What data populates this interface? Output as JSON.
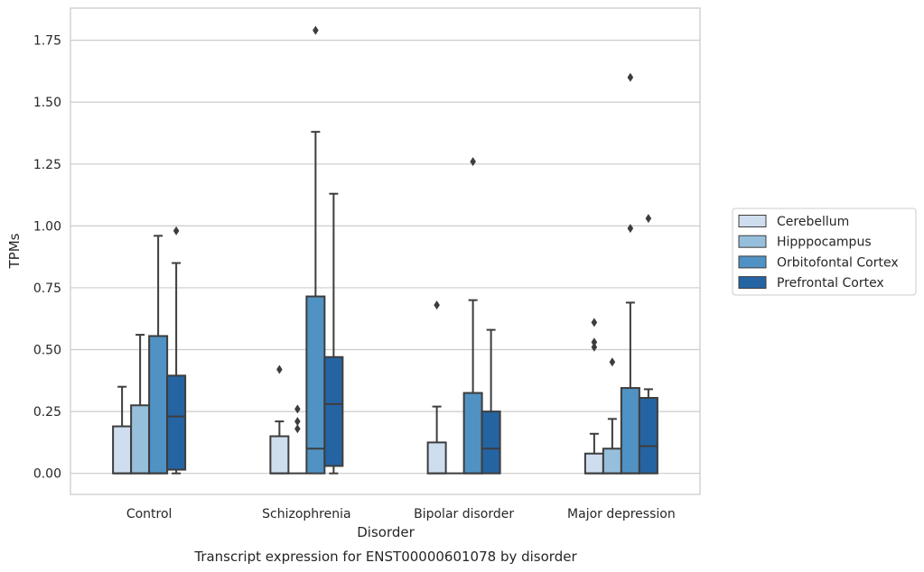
{
  "chart_data": {
    "type": "box",
    "caption": "Transcript expression for ENST00000601078 by disorder",
    "xlabel": "Disorder",
    "ylabel": "TPMs",
    "ylim": [
      -0.085,
      1.88
    ],
    "yticks": [
      0.0,
      0.25,
      0.5,
      0.75,
      1.0,
      1.25,
      1.5,
      1.75
    ],
    "ytick_labels": [
      "0.00",
      "0.25",
      "0.50",
      "0.75",
      "1.00",
      "1.25",
      "1.50",
      "1.75"
    ],
    "grid": "horizontal",
    "legend_position": "right",
    "categories": [
      "Control",
      "Schizophrenia",
      "Bipolar disorder",
      "Major depression"
    ],
    "series": [
      {
        "name": "Cerebellum",
        "color": "#cfdeee",
        "boxes": [
          {
            "whislo": 0.0,
            "q1": 0.0,
            "med": 0.0,
            "q3": 0.19,
            "whishi": 0.35,
            "fliers": []
          },
          {
            "whislo": 0.0,
            "q1": 0.0,
            "med": 0.0,
            "q3": 0.15,
            "whishi": 0.21,
            "fliers": [
              0.42
            ]
          },
          {
            "whislo": 0.0,
            "q1": 0.0,
            "med": 0.0,
            "q3": 0.125,
            "whishi": 0.27,
            "fliers": [
              0.68
            ]
          },
          {
            "whislo": 0.0,
            "q1": 0.0,
            "med": 0.0,
            "q3": 0.08,
            "whishi": 0.16,
            "fliers": [
              0.51,
              0.53,
              0.61
            ]
          }
        ]
      },
      {
        "name": "Hipppocampus",
        "color": "#96bfdc",
        "boxes": [
          {
            "whislo": 0.0,
            "q1": 0.0,
            "med": 0.0,
            "q3": 0.275,
            "whishi": 0.56,
            "fliers": []
          },
          {
            "whislo": 0.0,
            "q1": 0.0,
            "med": 0.0,
            "q3": 0.0,
            "whishi": 0.0,
            "fliers": [
              0.18,
              0.21,
              0.26
            ]
          },
          {
            "whislo": 0.0,
            "q1": 0.0,
            "med": 0.0,
            "q3": 0.0,
            "whishi": 0.0,
            "fliers": []
          },
          {
            "whislo": 0.0,
            "q1": 0.0,
            "med": 0.0,
            "q3": 0.1,
            "whishi": 0.22,
            "fliers": [
              0.45
            ]
          }
        ]
      },
      {
        "name": "Orbitofontal Cortex",
        "color": "#5092c3",
        "boxes": [
          {
            "whislo": 0.0,
            "q1": 0.0,
            "med": 0.0,
            "q3": 0.555,
            "whishi": 0.96,
            "fliers": []
          },
          {
            "whislo": 0.0,
            "q1": 0.0,
            "med": 0.1,
            "q3": 0.715,
            "whishi": 1.38,
            "fliers": [
              1.79
            ]
          },
          {
            "whislo": 0.0,
            "q1": 0.0,
            "med": 0.0,
            "q3": 0.325,
            "whishi": 0.7,
            "fliers": [
              1.26
            ]
          },
          {
            "whislo": 0.0,
            "q1": 0.0,
            "med": 0.0,
            "q3": 0.345,
            "whishi": 0.69,
            "fliers": [
              0.99,
              1.6
            ]
          }
        ]
      },
      {
        "name": "Prefrontal Cortex",
        "color": "#2564a3",
        "boxes": [
          {
            "whislo": 0.0,
            "q1": 0.015,
            "med": 0.23,
            "q3": 0.395,
            "whishi": 0.85,
            "fliers": [
              0.98
            ]
          },
          {
            "whislo": 0.0,
            "q1": 0.03,
            "med": 0.28,
            "q3": 0.47,
            "whishi": 1.13,
            "fliers": []
          },
          {
            "whislo": 0.0,
            "q1": 0.0,
            "med": 0.1,
            "q3": 0.25,
            "whishi": 0.58,
            "fliers": []
          },
          {
            "whislo": 0.0,
            "q1": 0.0,
            "med": 0.11,
            "q3": 0.305,
            "whishi": 0.34,
            "fliers": [
              1.03
            ]
          }
        ]
      }
    ]
  }
}
